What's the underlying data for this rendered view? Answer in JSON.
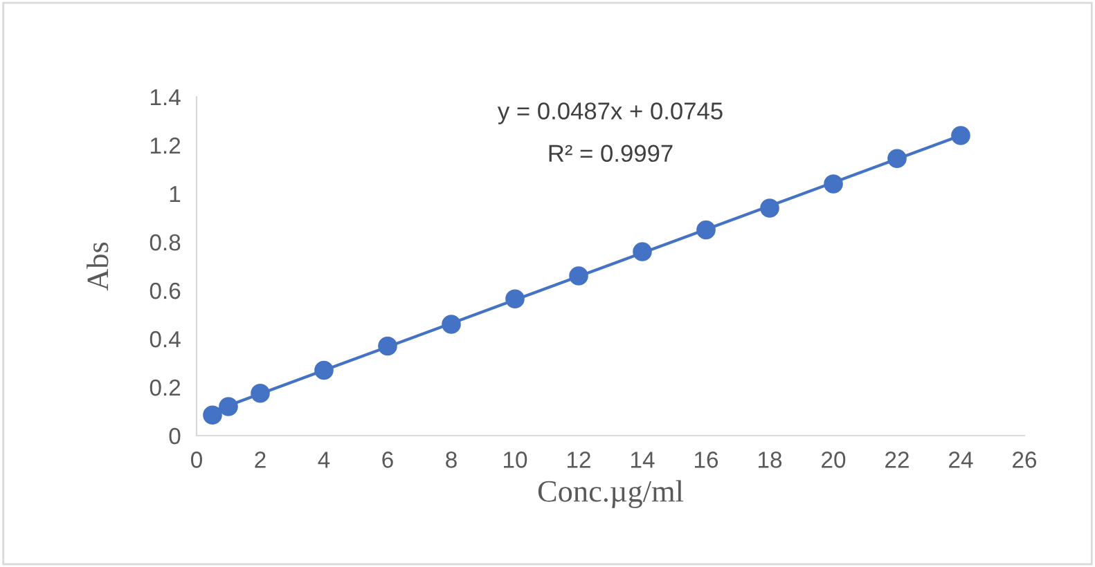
{
  "chart_data": {
    "type": "scatter",
    "xlabel": "Conc.µg/ml",
    "ylabel": "Abs",
    "x": [
      0.5,
      1,
      2,
      4,
      6,
      8,
      10,
      12,
      14,
      16,
      18,
      20,
      22,
      24
    ],
    "series": [
      {
        "type": "scatter",
        "color": "#4472c4",
        "marker": "circle",
        "values": [
          0.085,
          0.12,
          0.175,
          0.27,
          0.37,
          0.46,
          0.565,
          0.66,
          0.76,
          0.85,
          0.94,
          1.04,
          1.145,
          1.24
        ]
      },
      {
        "type": "line",
        "color": "#4472c4",
        "line_style": "solid",
        "marker": "none",
        "x": [
          0.5,
          24
        ],
        "values": [
          0.1,
          1.24
        ]
      }
    ],
    "annotations": [
      "y = 0.0487x + 0.0745",
      "R² = 0.9997"
    ],
    "xlim": [
      0,
      26
    ],
    "xticks": [
      0,
      2,
      4,
      6,
      8,
      10,
      12,
      14,
      16,
      18,
      20,
      22,
      24,
      26
    ],
    "ylim": [
      0,
      1.4
    ],
    "yticks": [
      0,
      0.2,
      0.4,
      0.6,
      0.8,
      1,
      1.2,
      1.4
    ],
    "grid": false,
    "legend": false
  }
}
